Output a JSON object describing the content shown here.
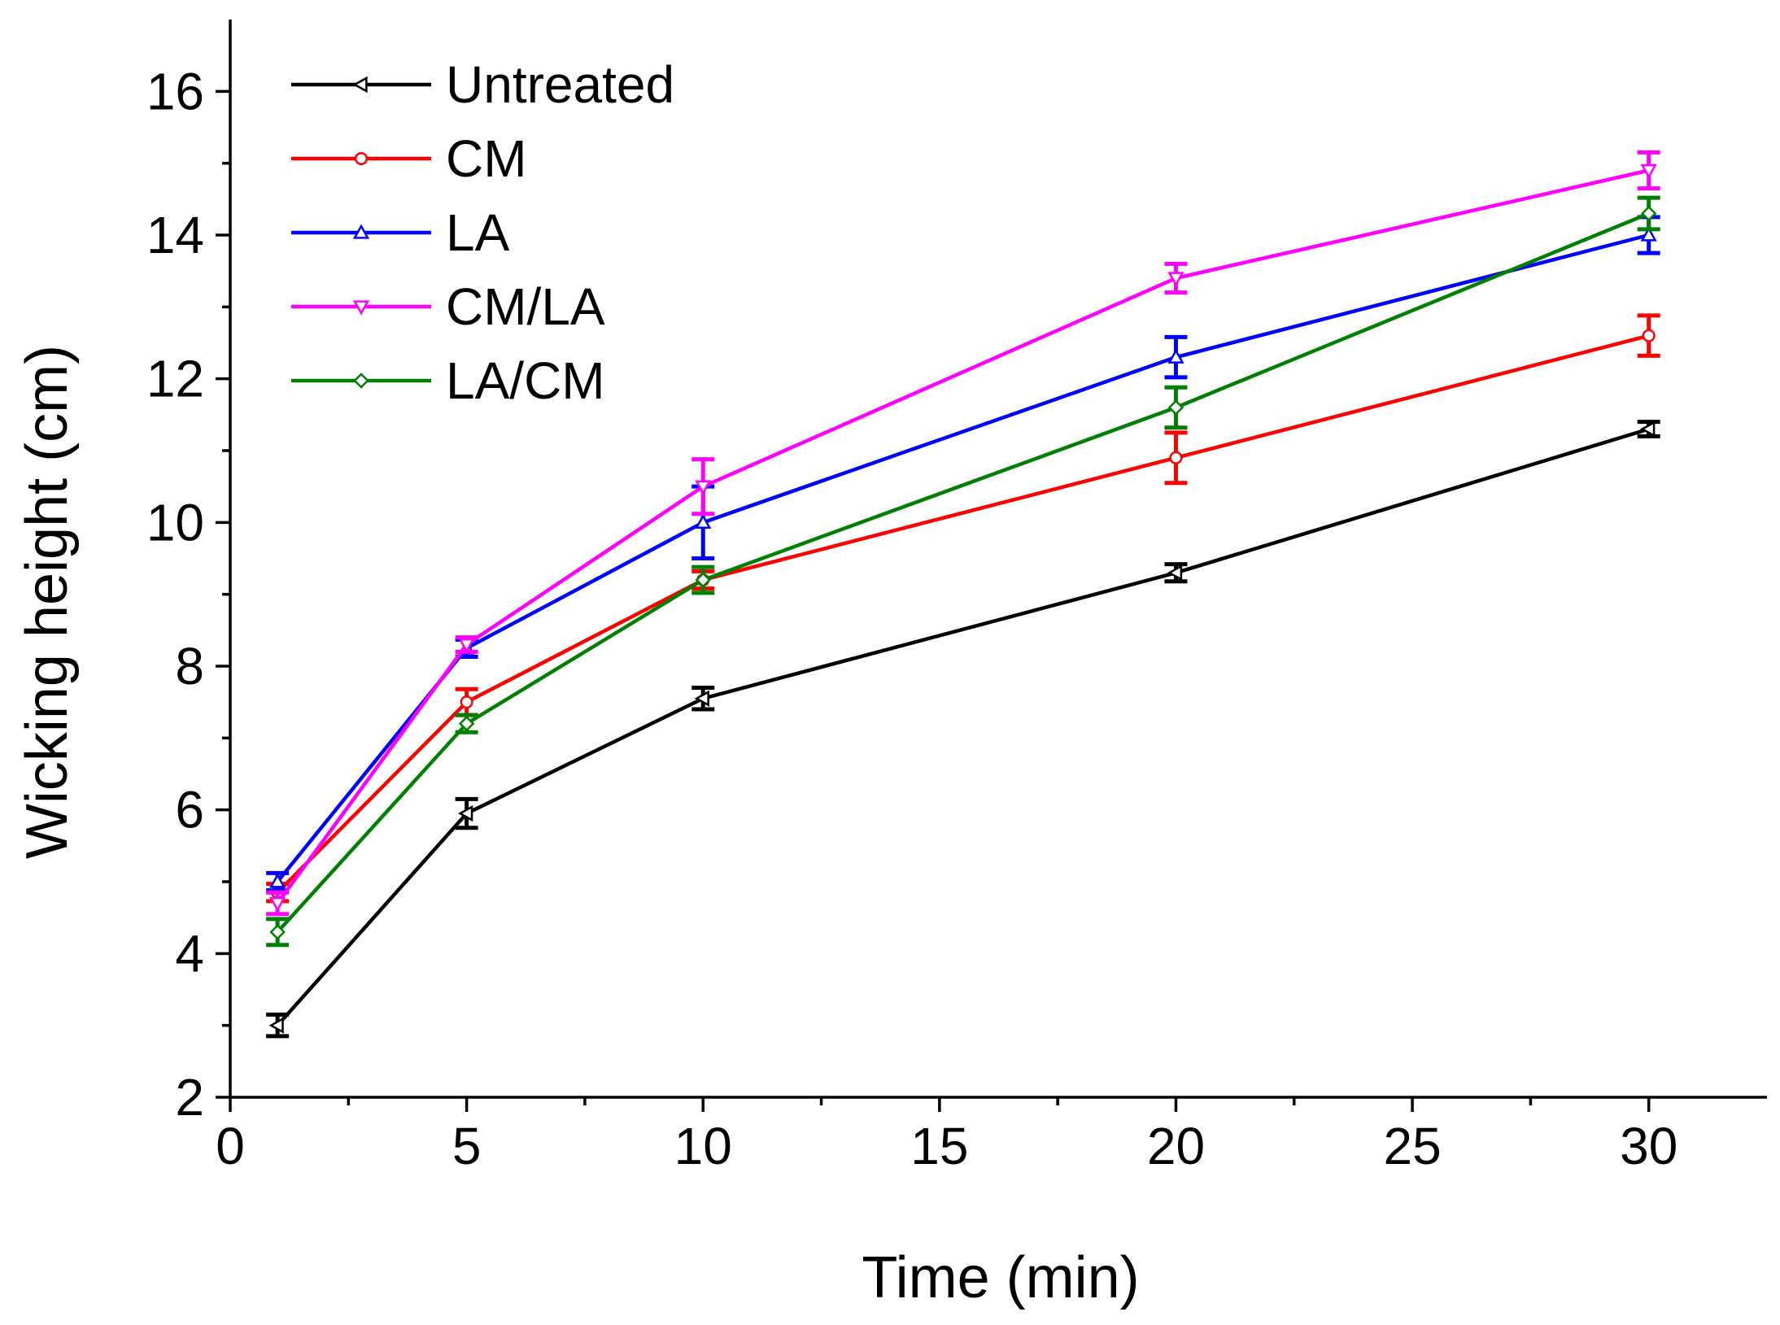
{
  "chart_data": {
    "type": "line",
    "title": "",
    "xlabel": "Time (min)",
    "ylabel": "Wicking height (cm)",
    "xlim": [
      0,
      32.5
    ],
    "ylim": [
      2,
      17
    ],
    "xticks": [
      0,
      5,
      10,
      15,
      20,
      25,
      30
    ],
    "xminor": [
      2.5,
      7.5,
      12.5,
      17.5,
      22.5,
      27.5
    ],
    "yticks": [
      2,
      4,
      6,
      8,
      10,
      12,
      14,
      16
    ],
    "x": [
      1,
      5,
      10,
      20,
      30
    ],
    "legend_position": "top-left",
    "series": [
      {
        "name": "Untreated",
        "color": "#000000",
        "marker": "left-triangle",
        "values": [
          3.0,
          5.95,
          7.55,
          9.3,
          11.3
        ],
        "errors": [
          0.15,
          0.2,
          0.15,
          0.12,
          0.1
        ]
      },
      {
        "name": "CM",
        "color": "#ff0000",
        "marker": "circle",
        "values": [
          4.85,
          7.5,
          9.2,
          10.9,
          12.6
        ],
        "errors": [
          0.12,
          0.18,
          0.12,
          0.35,
          0.28
        ]
      },
      {
        "name": "LA",
        "color": "#0000ff",
        "marker": "triangle-up",
        "values": [
          5.0,
          8.25,
          10.0,
          12.3,
          14.0
        ],
        "errors": [
          0.12,
          0.12,
          0.5,
          0.28,
          0.25
        ]
      },
      {
        "name": "CM/LA",
        "color": "#ff00ff",
        "marker": "triangle-down",
        "values": [
          4.7,
          8.3,
          10.5,
          13.4,
          14.9
        ],
        "errors": [
          0.15,
          0.1,
          0.38,
          0.2,
          0.25
        ]
      },
      {
        "name": "LA/CM",
        "color": "#008000",
        "marker": "diamond",
        "values": [
          4.3,
          7.2,
          9.2,
          11.6,
          14.3
        ],
        "errors": [
          0.18,
          0.12,
          0.18,
          0.28,
          0.22
        ]
      }
    ]
  }
}
